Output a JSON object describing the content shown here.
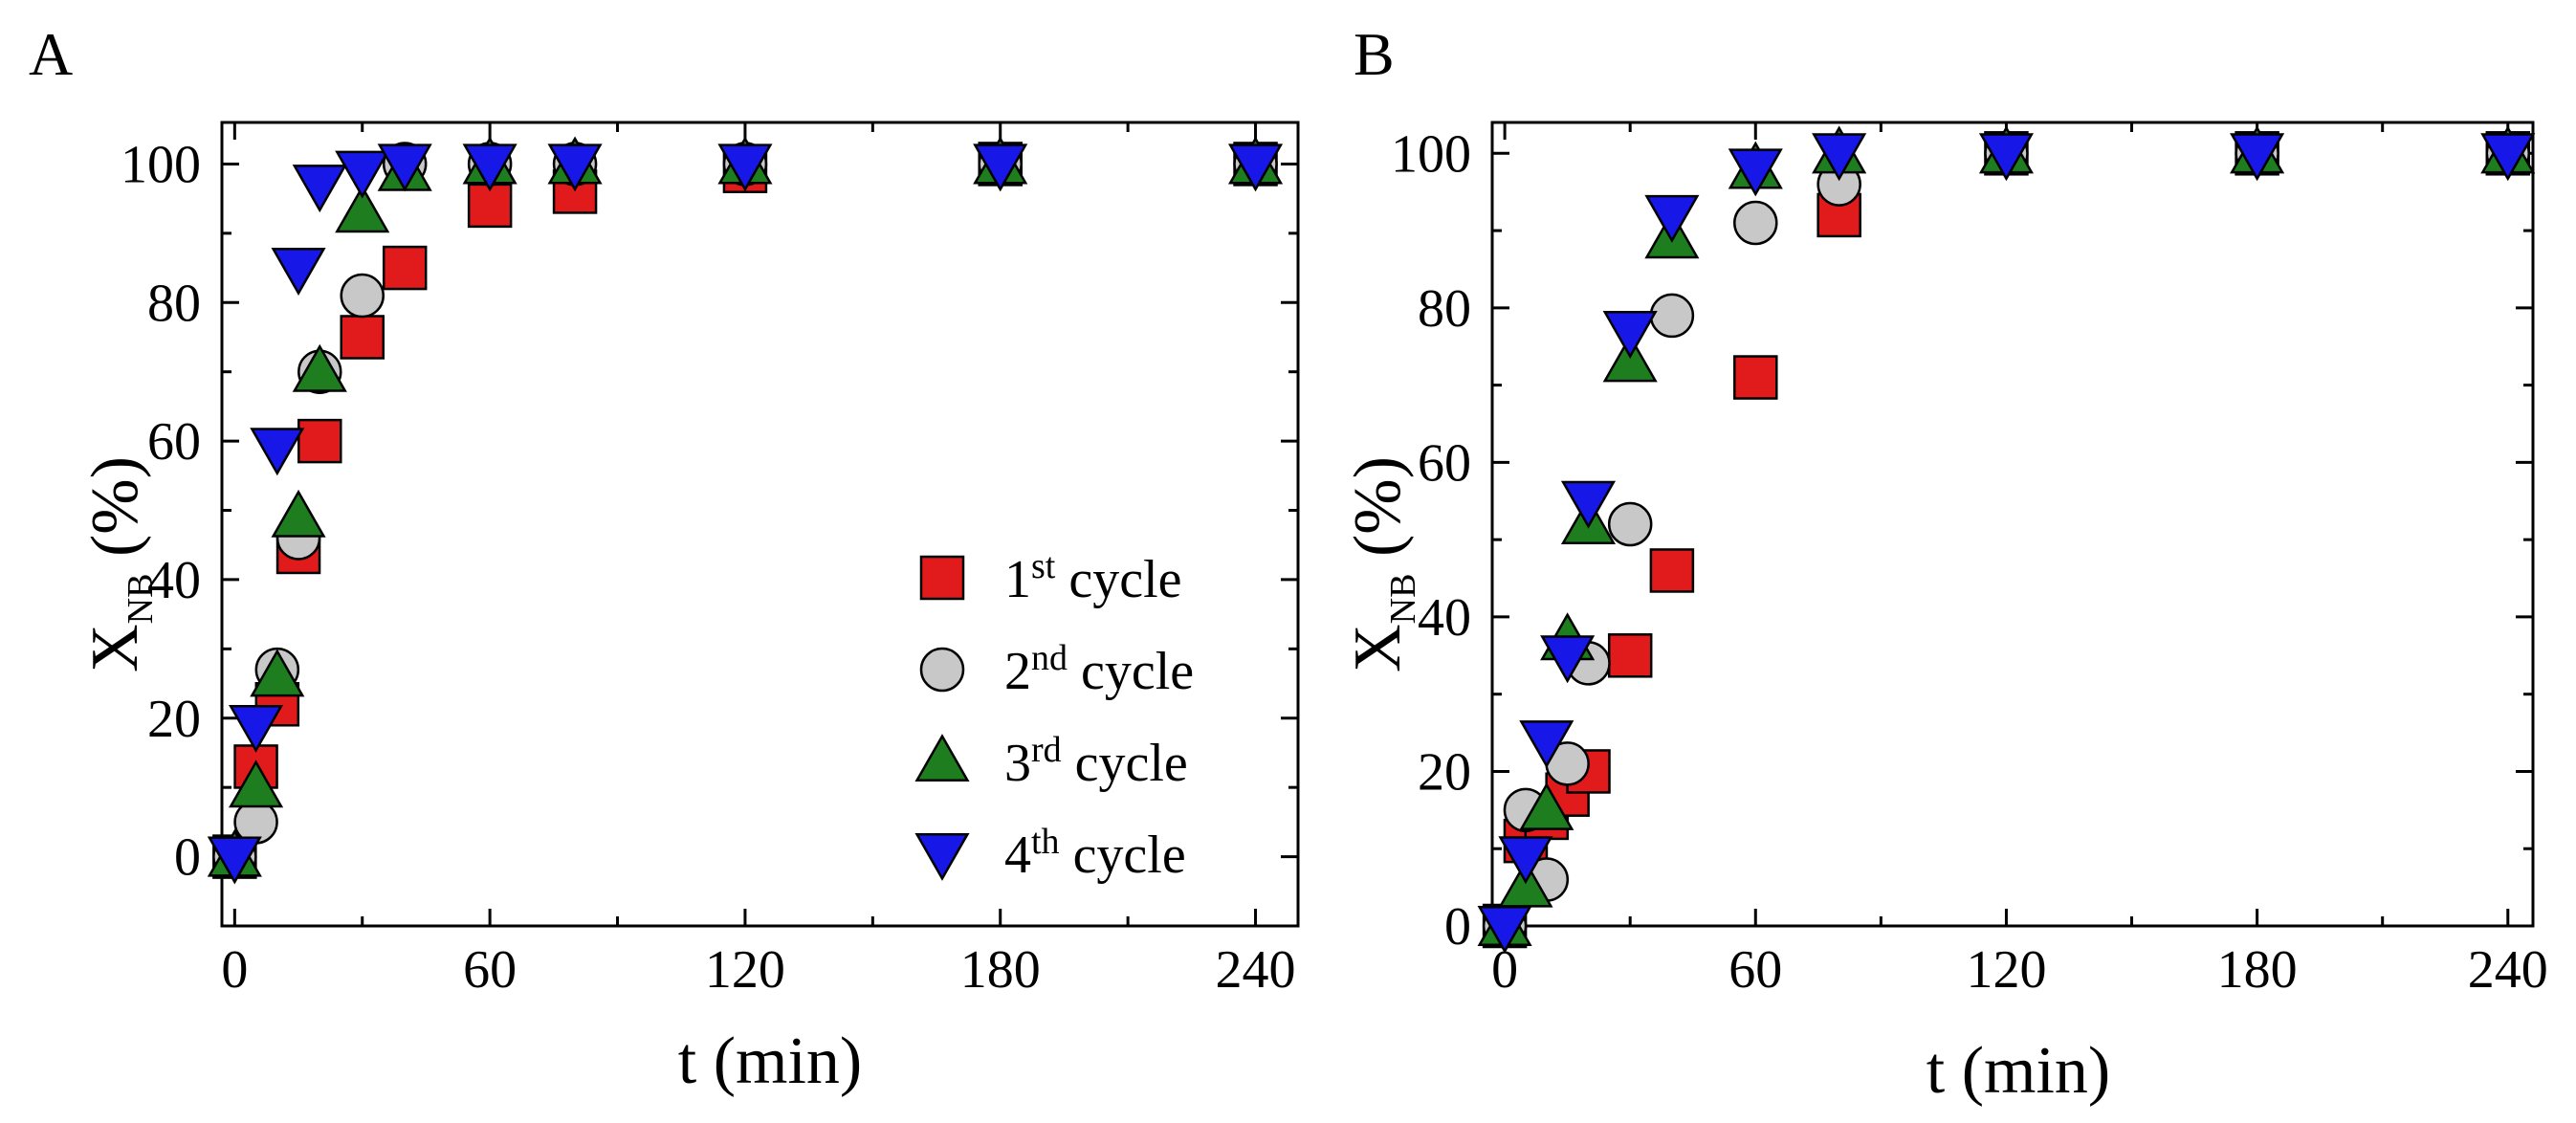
{
  "panel_labels": [
    "A",
    "B"
  ],
  "legend": [
    {
      "prefix": "1",
      "sup": "st",
      "suffix": " cycle"
    },
    {
      "prefix": "2",
      "sup": "nd",
      "suffix": " cycle"
    },
    {
      "prefix": "3",
      "sup": "rd",
      "suffix": " cycle"
    },
    {
      "prefix": "4",
      "sup": "th",
      "suffix": " cycle"
    }
  ],
  "colors": {
    "1st cycle": "#e11b1b",
    "2nd cycle": "#c8c8c8",
    "3rd cycle": "#1e7d1e",
    "4th cycle": "#1717e8",
    "axis": "#000000"
  },
  "chart_data": [
    {
      "type": "scatter",
      "panel": "A",
      "title": "",
      "xlabel": "t (min)",
      "ylabel": {
        "main": "X",
        "sub": "NB",
        "rest": " (%)"
      },
      "xlim": [
        -3,
        250
      ],
      "ylim": [
        -10,
        106
      ],
      "xticks": [
        0,
        60,
        120,
        180,
        240
      ],
      "yticks": [
        0,
        20,
        40,
        60,
        80,
        100
      ],
      "legend_position": "center-right",
      "series": [
        {
          "name": "1st cycle",
          "marker": "square",
          "x": [
            0,
            5,
            10,
            15,
            20,
            30,
            40,
            60,
            80,
            120,
            180,
            240
          ],
          "y": [
            0,
            13,
            22,
            44,
            60,
            75,
            85,
            94,
            96,
            99,
            100,
            100
          ]
        },
        {
          "name": "2nd cycle",
          "marker": "circle",
          "x": [
            0,
            5,
            10,
            15,
            20,
            30,
            40,
            60,
            80,
            120,
            180,
            240
          ],
          "y": [
            0,
            5,
            27,
            46,
            70,
            81,
            100,
            100,
            100,
            100,
            100,
            100
          ]
        },
        {
          "name": "3rd cycle",
          "marker": "triangle-up",
          "x": [
            0,
            5,
            10,
            15,
            20,
            30,
            40,
            60,
            80,
            120,
            180,
            240
          ],
          "y": [
            0,
            10,
            26,
            49,
            70,
            93,
            99,
            100,
            100,
            100,
            100,
            100
          ]
        },
        {
          "name": "4th cycle",
          "marker": "triangle-down",
          "x": [
            0,
            5,
            10,
            15,
            20,
            30,
            40,
            60,
            80,
            120,
            180,
            240
          ],
          "y": [
            0,
            19,
            59,
            85,
            97,
            99,
            100,
            100,
            100,
            100,
            100,
            100
          ]
        }
      ]
    },
    {
      "type": "scatter",
      "panel": "B",
      "title": "",
      "xlabel": "t (min)",
      "ylabel": {
        "main": "X",
        "sub": "NB",
        "rest": " (%)"
      },
      "xlim": [
        -3,
        246
      ],
      "ylim": [
        0,
        104
      ],
      "xticks": [
        0,
        60,
        120,
        180,
        240
      ],
      "yticks": [
        0,
        20,
        40,
        60,
        80,
        100
      ],
      "legend_position": "none",
      "series": [
        {
          "name": "1st cycle",
          "marker": "square",
          "x": [
            0,
            5,
            10,
            15,
            20,
            30,
            40,
            60,
            80,
            120,
            180,
            240
          ],
          "y": [
            0,
            11,
            14,
            17,
            20,
            35,
            46,
            71,
            92,
            100,
            100,
            100
          ]
        },
        {
          "name": "2nd cycle",
          "marker": "circle",
          "x": [
            0,
            5,
            10,
            15,
            20,
            30,
            40,
            60,
            80,
            120,
            180,
            240
          ],
          "y": [
            0,
            15,
            6,
            21,
            34,
            52,
            79,
            91,
            96,
            100,
            100,
            100
          ]
        },
        {
          "name": "3rd cycle",
          "marker": "triangle-up",
          "x": [
            0,
            5,
            10,
            15,
            20,
            30,
            40,
            60,
            80,
            120,
            180,
            240
          ],
          "y": [
            0,
            5,
            15,
            37,
            52,
            73,
            89,
            98,
            100,
            100,
            100,
            100
          ]
        },
        {
          "name": "4th cycle",
          "marker": "triangle-down",
          "x": [
            0,
            5,
            10,
            15,
            20,
            30,
            40,
            60,
            80,
            120,
            180,
            240
          ],
          "y": [
            0,
            9,
            24,
            35,
            55,
            77,
            92,
            98,
            100,
            100,
            100,
            100
          ]
        }
      ]
    }
  ]
}
